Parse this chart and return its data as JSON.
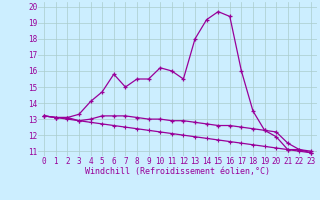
{
  "xlabel": "Windchill (Refroidissement éolien,°C)",
  "ylabel": "",
  "background_color": "#cceeff",
  "grid_color": "#aacccc",
  "line_color": "#990099",
  "xlim": [
    -0.5,
    23.5
  ],
  "ylim": [
    10.7,
    20.3
  ],
  "yticks": [
    11,
    12,
    13,
    14,
    15,
    16,
    17,
    18,
    19,
    20
  ],
  "xticks": [
    0,
    1,
    2,
    3,
    4,
    5,
    6,
    7,
    8,
    9,
    10,
    11,
    12,
    13,
    14,
    15,
    16,
    17,
    18,
    19,
    20,
    21,
    22,
    23
  ],
  "line1": [
    13.2,
    13.1,
    13.1,
    13.3,
    14.1,
    14.7,
    15.8,
    15.0,
    15.5,
    15.5,
    16.2,
    16.0,
    15.5,
    18.0,
    19.2,
    19.7,
    19.4,
    16.0,
    13.5,
    12.3,
    11.9,
    11.1,
    11.1,
    10.9
  ],
  "line2": [
    13.2,
    13.1,
    13.1,
    12.9,
    13.0,
    13.2,
    13.2,
    13.2,
    13.1,
    13.0,
    13.0,
    12.9,
    12.9,
    12.8,
    12.7,
    12.6,
    12.6,
    12.5,
    12.4,
    12.3,
    12.2,
    11.5,
    11.1,
    11.0
  ],
  "line3": [
    13.2,
    13.1,
    13.0,
    12.9,
    12.8,
    12.7,
    12.6,
    12.5,
    12.4,
    12.3,
    12.2,
    12.1,
    12.0,
    11.9,
    11.8,
    11.7,
    11.6,
    11.5,
    11.4,
    11.3,
    11.2,
    11.1,
    11.0,
    10.9
  ],
  "tick_fontsize": 5.5,
  "xlabel_fontsize": 6.0
}
